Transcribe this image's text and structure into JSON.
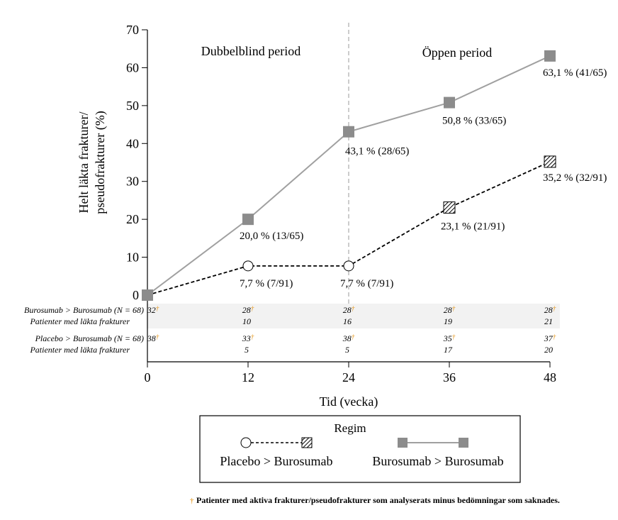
{
  "chart_data": {
    "type": "line",
    "x": [
      0,
      12,
      24,
      36,
      48
    ],
    "xlabel": "Tid (vecka)",
    "ylabel_lines": [
      "Helt läkta frakturer/",
      "pseudofrakturer (%)"
    ],
    "ylim": [
      0,
      70
    ],
    "yticks": [
      0,
      10,
      20,
      30,
      40,
      50,
      60,
      70
    ],
    "xticks": [
      0,
      12,
      24,
      36,
      48
    ],
    "period_labels": [
      "Dubbelblind period",
      "Öppen period"
    ],
    "period_divider_x": 24,
    "series": [
      {
        "name": "Burosumab > Burosumab",
        "values": [
          0,
          20.0,
          43.1,
          50.8,
          63.1
        ],
        "color": "#999999",
        "style": "solid",
        "labels": [
          "",
          "20,0 % (13/65)",
          "43,1 % (28/65)",
          "50,8 % (33/65)",
          "63,1 % (41/65)"
        ]
      },
      {
        "name": "Placebo > Burosumab",
        "values": [
          0,
          7.7,
          7.7,
          23.1,
          35.2
        ],
        "color": "#000000",
        "style": "dashed",
        "labels": [
          "",
          "7,7 % (7/91)",
          "7,7 % (7/91)",
          "23,1 % (21/91)",
          "35,2 % (32/91)"
        ]
      }
    ],
    "table": [
      {
        "group": "Burosumab > Burosumab (N = 68)",
        "sub": "Patienter med läkta frakturer",
        "analysed": [
          "32",
          "28",
          "28",
          "28",
          "28"
        ],
        "healed": [
          "",
          "10",
          "16",
          "19",
          "21"
        ]
      },
      {
        "group": "Placebo > Burosumab (N = 68)",
        "sub": "Patienter med läkta frakturer",
        "analysed": [
          "38",
          "33",
          "38",
          "35",
          "37"
        ],
        "healed": [
          "",
          "5",
          "5",
          "17",
          "20"
        ]
      }
    ],
    "dagger": "†",
    "legend": {
      "title": "Regim",
      "items": [
        "Placebo > Burosumab",
        "Burosumab > Burosumab"
      ],
      "placement": "bottom"
    },
    "footnote": "Patienter med aktiva frakturer/pseudofrakturer som analyserats minus bedömningar som saknades.",
    "colors": {
      "marker": "#8c8c8c",
      "line_gray": "#a0a0a0",
      "band": "#f2f2f2",
      "dagger": "#e08a00"
    }
  }
}
